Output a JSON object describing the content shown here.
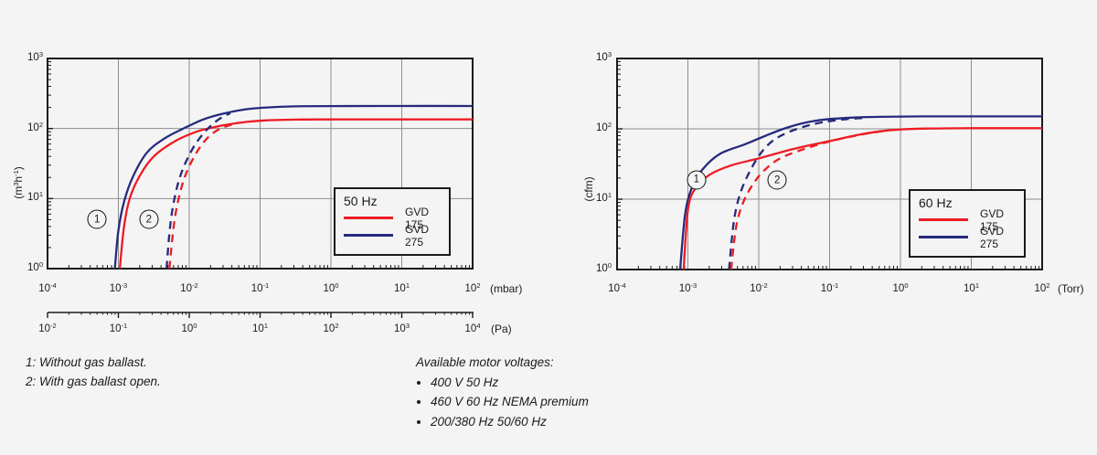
{
  "page": {
    "background": "#f4f4f4",
    "text_color": "#1a1a1a",
    "grid_color": "#8d8d8d"
  },
  "chart_data": [
    {
      "type": "line",
      "id": "speed-curve-50hz",
      "x_scale": "log",
      "y_scale": "log",
      "x_range_exp": [
        -4,
        2
      ],
      "y_range_exp": [
        0,
        3
      ],
      "grid": true,
      "y_axis": {
        "label_parts": [
          {
            "t": "(m"
          },
          {
            "t": "3",
            "sup": true
          },
          {
            "t": "h"
          },
          {
            "t": "-1",
            "sup": true
          },
          {
            "t": ")"
          }
        ],
        "tick_exponents": [
          "3",
          "2",
          "1",
          "0"
        ]
      },
      "x_axis": {
        "unit": "(mbar)",
        "tick_exponents": [
          "-4",
          "-3",
          "-2",
          "-1",
          "0",
          "1",
          "2"
        ]
      },
      "x_axis2": {
        "unit": "(Pa)",
        "tick_exponents": [
          "-2",
          "-1",
          "0",
          "1",
          "2",
          "3",
          "4"
        ]
      },
      "legend": {
        "title": "50 Hz",
        "position": "lower-right",
        "entries": [
          {
            "label": "GVD 175",
            "color": "#ed1c24",
            "dashed": false
          },
          {
            "label": "GVD 275",
            "color": "#262a7c",
            "dashed": false
          }
        ]
      },
      "annotations": [
        {
          "label": "1",
          "x_log10": -3.3,
          "value": 5
        },
        {
          "label": "2",
          "x_log10": -2.57,
          "value": 5
        }
      ],
      "series": [
        {
          "name": "GVD 275 without gas ballast",
          "color": "#262a7c",
          "dashed": false,
          "points": [
            [
              -3.05,
              1
            ],
            [
              -3.0,
              3.5
            ],
            [
              -2.92,
              9
            ],
            [
              -2.8,
              20
            ],
            [
              -2.6,
              45
            ],
            [
              -2.35,
              72
            ],
            [
              -2.1,
              98
            ],
            [
              -1.8,
              135
            ],
            [
              -1.5,
              165
            ],
            [
              -1.2,
              188
            ],
            [
              -0.9,
              200
            ],
            [
              -0.5,
              207
            ],
            [
              0,
              209
            ],
            [
              1,
              210
            ],
            [
              2,
              210
            ]
          ]
        },
        {
          "name": "GVD 175 without gas ballast",
          "color": "#ed1c24",
          "dashed": false,
          "points": [
            [
              -2.98,
              1
            ],
            [
              -2.92,
              4
            ],
            [
              -2.84,
              10
            ],
            [
              -2.7,
              21
            ],
            [
              -2.5,
              40
            ],
            [
              -2.2,
              66
            ],
            [
              -1.9,
              90
            ],
            [
              -1.75,
              99
            ],
            [
              -1.5,
              112
            ],
            [
              -1.2,
              124
            ],
            [
              -0.9,
              131
            ],
            [
              -0.5,
              134
            ],
            [
              0,
              135
            ],
            [
              1,
              135
            ],
            [
              2,
              135
            ]
          ]
        },
        {
          "name": "GVD 275 with gas ballast open",
          "color": "#262a7c",
          "dashed": true,
          "points": [
            [
              -2.32,
              1
            ],
            [
              -2.27,
              4
            ],
            [
              -2.2,
              11
            ],
            [
              -2.1,
              25
            ],
            [
              -1.95,
              52
            ],
            [
              -1.8,
              85
            ],
            [
              -1.65,
              120
            ],
            [
              -1.52,
              148
            ],
            [
              -1.42,
              165
            ]
          ]
        },
        {
          "name": "GVD 175 with gas ballast open",
          "color": "#ed1c24",
          "dashed": true,
          "points": [
            [
              -2.28,
              1
            ],
            [
              -2.22,
              4
            ],
            [
              -2.15,
              10
            ],
            [
              -2.05,
              22
            ],
            [
              -1.9,
              45
            ],
            [
              -1.75,
              72
            ],
            [
              -1.6,
              95
            ],
            [
              -1.45,
              110
            ],
            [
              -1.3,
              121
            ]
          ]
        }
      ]
    },
    {
      "type": "line",
      "id": "speed-curve-60hz",
      "x_scale": "log",
      "y_scale": "log",
      "x_range_exp": [
        -4,
        2
      ],
      "y_range_exp": [
        0,
        3
      ],
      "grid": true,
      "y_axis": {
        "label_parts": [
          {
            "t": "(cfm)"
          }
        ],
        "tick_exponents": [
          "3",
          "2",
          "1",
          "0"
        ]
      },
      "x_axis": {
        "unit": "(Torr)",
        "tick_exponents": [
          "-4",
          "-3",
          "-2",
          "-1",
          "0",
          "1",
          "2"
        ]
      },
      "legend": {
        "title": "60 Hz",
        "position": "lower-right",
        "entries": [
          {
            "label": "GVD 175",
            "color": "#ed1c24",
            "dashed": false
          },
          {
            "label": "GVD 275",
            "color": "#262a7c",
            "dashed": false
          }
        ]
      },
      "annotations": [
        {
          "label": "1",
          "x_log10": -2.88,
          "value": 19
        },
        {
          "label": "2",
          "x_log10": -1.74,
          "value": 18.5
        }
      ],
      "series": [
        {
          "name": "GVD 275 without gas ballast",
          "color": "#262a7c",
          "dashed": false,
          "points": [
            [
              -3.11,
              1
            ],
            [
              -3.04,
              6
            ],
            [
              -2.95,
              14
            ],
            [
              -2.8,
              26
            ],
            [
              -2.55,
              44
            ],
            [
              -2.2,
              60
            ],
            [
              -1.9,
              80
            ],
            [
              -1.65,
              100
            ],
            [
              -1.35,
              122
            ],
            [
              -1.05,
              136
            ],
            [
              -0.7,
              144
            ],
            [
              -0.3,
              148
            ],
            [
              0.3,
              150
            ],
            [
              1,
              150
            ],
            [
              2,
              150
            ]
          ]
        },
        {
          "name": "GVD 175 without gas ballast",
          "color": "#ed1c24",
          "dashed": false,
          "points": [
            [
              -3.06,
              1
            ],
            [
              -3.0,
              7
            ],
            [
              -2.9,
              14
            ],
            [
              -2.7,
              22
            ],
            [
              -2.4,
              30
            ],
            [
              -2.0,
              38
            ],
            [
              -1.5,
              52
            ],
            [
              -1.0,
              67
            ],
            [
              -0.6,
              82
            ],
            [
              -0.3,
              92
            ],
            [
              0,
              98
            ],
            [
              0.4,
              101
            ],
            [
              1,
              102
            ],
            [
              2,
              102
            ]
          ]
        },
        {
          "name": "GVD 275 with gas ballast open",
          "color": "#262a7c",
          "dashed": true,
          "points": [
            [
              -2.42,
              1
            ],
            [
              -2.35,
              5
            ],
            [
              -2.25,
              13
            ],
            [
              -2.1,
              28
            ],
            [
              -1.95,
              48
            ],
            [
              -1.8,
              68
            ],
            [
              -1.6,
              88
            ],
            [
              -1.35,
              108
            ],
            [
              -1.1,
              124
            ],
            [
              -0.8,
              136
            ],
            [
              -0.5,
              143
            ]
          ]
        },
        {
          "name": "GVD 175 with gas ballast open",
          "color": "#ed1c24",
          "dashed": true,
          "points": [
            [
              -2.39,
              1
            ],
            [
              -2.32,
              4
            ],
            [
              -2.22,
              9
            ],
            [
              -2.07,
              17
            ],
            [
              -1.9,
              27
            ],
            [
              -1.7,
              38
            ],
            [
              -1.45,
              48
            ],
            [
              -1.15,
              60
            ],
            [
              -0.85,
              72
            ],
            [
              -0.55,
              83
            ],
            [
              -0.25,
              93
            ]
          ]
        }
      ]
    }
  ],
  "footnotes": [
    "1: Without gas ballast.",
    "2: With gas ballast open."
  ],
  "voltages": {
    "heading": "Available motor voltages:",
    "items": [
      "400 V 50 Hz",
      "460 V 60 Hz NEMA premium",
      "200/380 Hz 50/60 Hz"
    ]
  }
}
